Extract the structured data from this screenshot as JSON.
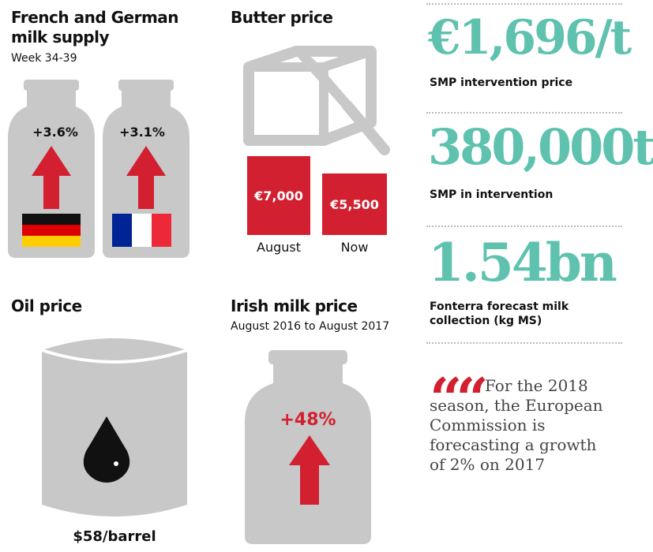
{
  "milk_supply": {
    "title": "French and German milk supply",
    "subtitle": "Week 34-39",
    "germany": {
      "label": "+3.6%"
    },
    "france": {
      "label": "+3.1%"
    }
  },
  "butter": {
    "title": "Butter price",
    "august": {
      "value": "€7,000",
      "label": "August"
    },
    "now": {
      "value": "€5,500",
      "label": "Now"
    }
  },
  "stats": [
    {
      "value": "€1,696/t",
      "caption": "SMP intervention price"
    },
    {
      "value": "380,000t",
      "caption": "SMP in intervention"
    },
    {
      "value": "1.54bn",
      "caption": "Fonterra forecast milk collection (kg MS)"
    }
  ],
  "oil": {
    "title": "Oil price",
    "value": "$58/barrel"
  },
  "irish_milk": {
    "title": "Irish milk price",
    "subtitle": "August 2016 to August 2017",
    "change": "+48%"
  },
  "quote": {
    "text": "For the 2018 season, the European Commission is forecasting a growth of 2% on 2017"
  },
  "colors": {
    "accent_red": "#d32030",
    "teal": "#5ec2ae",
    "grey": "#c8c8c8"
  }
}
